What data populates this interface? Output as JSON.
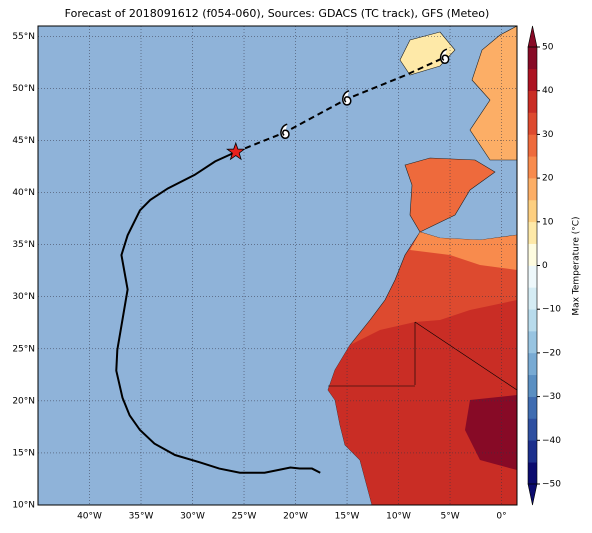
{
  "chart_data": {
    "type": "map",
    "title": "Forecast of 2018091612 (f054-060), Sources: GDACS (TC track), GFS (Meteo)",
    "xlim": [
      -45,
      1.5
    ],
    "ylim": [
      10,
      56
    ],
    "xticks": [
      {
        "value": -40,
        "label": "40°W"
      },
      {
        "value": -35,
        "label": "35°W"
      },
      {
        "value": -30,
        "label": "30°W"
      },
      {
        "value": -25,
        "label": "25°W"
      },
      {
        "value": -20,
        "label": "20°W"
      },
      {
        "value": -15,
        "label": "15°W"
      },
      {
        "value": -10,
        "label": "10°W"
      },
      {
        "value": -5,
        "label": "5°W"
      },
      {
        "value": 0,
        "label": "0°"
      }
    ],
    "yticks": [
      {
        "value": 10,
        "label": "10°N"
      },
      {
        "value": 15,
        "label": "15°N"
      },
      {
        "value": 20,
        "label": "20°N"
      },
      {
        "value": 25,
        "label": "25°N"
      },
      {
        "value": 30,
        "label": "30°N"
      },
      {
        "value": 35,
        "label": "35°N"
      },
      {
        "value": 40,
        "label": "40°N"
      },
      {
        "value": 45,
        "label": "45°N"
      },
      {
        "value": 50,
        "label": "50°N"
      },
      {
        "value": 55,
        "label": "55°N"
      }
    ],
    "grid": true,
    "series": [
      {
        "name": "past track",
        "color": "#000000",
        "x": [
          -17.6,
          -18.4,
          -19.6,
          -20.5,
          -21.5,
          -23.0,
          -25.4,
          -27.4,
          -29.3,
          -31.7,
          -33.7,
          -35.1,
          -36.1,
          -36.8,
          -37.4,
          -37.3,
          -36.8,
          -36.3,
          -36.9,
          -36.3,
          -35.1,
          -34.1,
          -32.4,
          -29.8,
          -27.8,
          -25.8
        ],
        "y": [
          13.1,
          13.5,
          13.5,
          13.6,
          13.4,
          13.1,
          13.1,
          13.5,
          14.1,
          14.8,
          15.9,
          17.2,
          18.6,
          20.3,
          22.9,
          24.9,
          27.8,
          30.7,
          34.0,
          35.9,
          38.3,
          39.3,
          40.4,
          41.7,
          43.0,
          43.9
        ]
      },
      {
        "name": "forecast track",
        "color": "#000000",
        "dashed": true,
        "x": [
          -25.8,
          -21.0,
          -15.0,
          -9.5,
          -5.5
        ],
        "y": [
          43.9,
          45.8,
          49.0,
          51.2,
          53.0
        ]
      }
    ],
    "current_position": {
      "x": -25.8,
      "y": 43.9,
      "color": "#e8201c"
    },
    "storm_symbols": {
      "x": [
        -21.0,
        -15.0,
        -5.5
      ],
      "y": [
        45.8,
        49.0,
        53.0
      ]
    },
    "colorbar": {
      "label": "Max Temperature (°C)",
      "lim": [
        -50,
        50
      ],
      "colors": [
        "#0b0b6e",
        "#1c2f8c",
        "#2e4fa0",
        "#3f6cb1",
        "#5a8fc2",
        "#78aad3",
        "#98c4e1",
        "#b8dbec",
        "#d5ecf4",
        "#eef8fb",
        "#fefce0",
        "#fee9a8",
        "#fdcf80",
        "#fcae66",
        "#f88b4d",
        "#ee6a3c",
        "#dd4a2f",
        "#c92d25",
        "#ac1322",
        "#870a26"
      ],
      "ticks": [
        {
          "value": -50,
          "label": "−50"
        },
        {
          "value": -40,
          "label": "−40"
        },
        {
          "value": -30,
          "label": "−30"
        },
        {
          "value": -20,
          "label": "−20"
        },
        {
          "value": -10,
          "label": "−10"
        },
        0,
        10,
        20,
        30,
        40,
        50
      ]
    }
  }
}
